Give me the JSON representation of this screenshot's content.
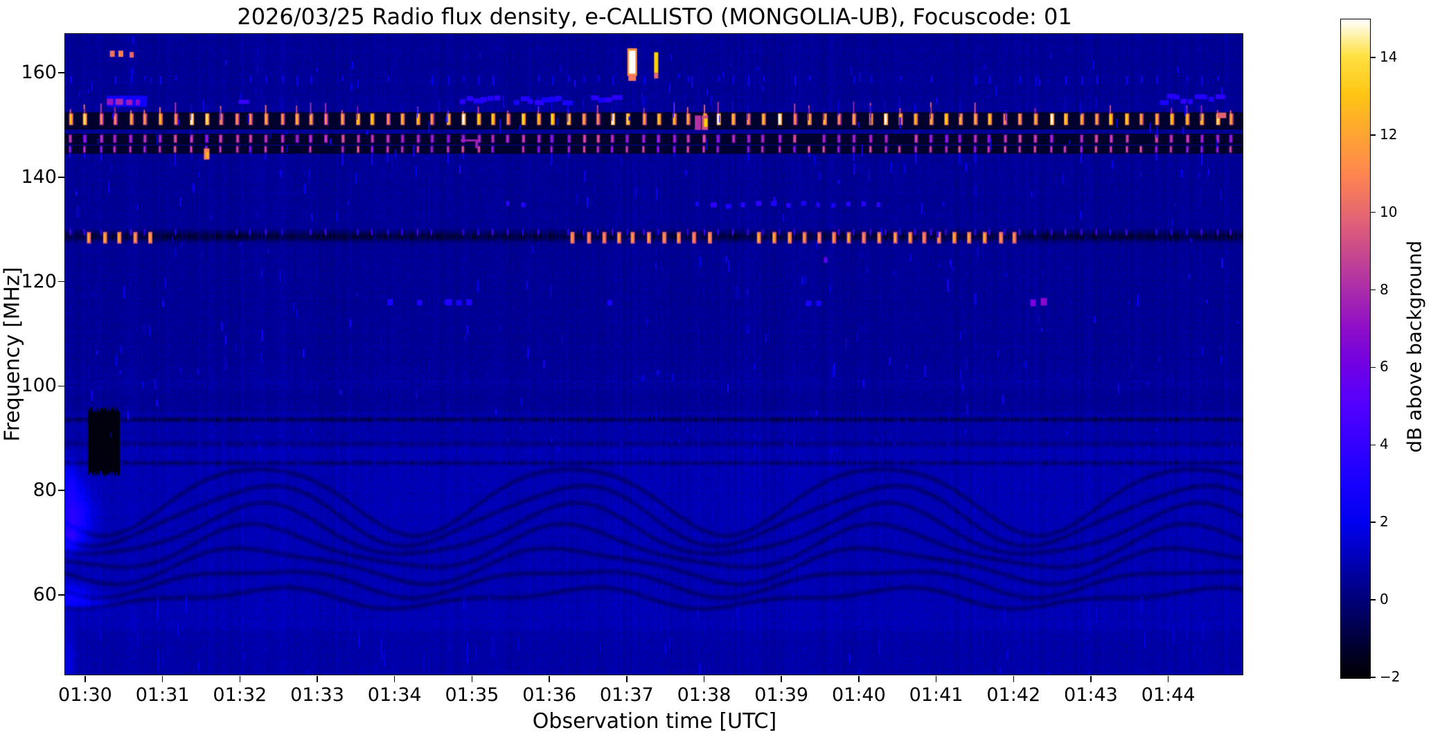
{
  "chart_data": {
    "type": "heatmap",
    "subtype": "radio-spectrogram",
    "title": "2026/03/25  Radio flux density, e-CALLISTO (MONGOLIA-UB), Focuscode: 01",
    "date": "2026/03/25",
    "station": "MONGOLIA-UB",
    "focuscode": "01",
    "xlabel": "Observation time [UTC]",
    "ylabel": "Frequency [MHz]",
    "x_axis": {
      "tick_labels": [
        "01:30",
        "01:31",
        "01:32",
        "01:33",
        "01:34",
        "01:35",
        "01:36",
        "01:37",
        "01:38",
        "01:39",
        "01:40",
        "01:41",
        "01:42",
        "01:43",
        "01:44"
      ],
      "tick_interval_min": 1,
      "plot_start_min_rel_0130": -0.25,
      "plot_end_min_rel_0130": 14.97
    },
    "y_axis": {
      "tick_values": [
        160,
        140,
        120,
        100,
        80,
        60
      ],
      "top_mhz": 167.3,
      "bottom_mhz": 44.6
    },
    "colorbar": {
      "label": "dB above background",
      "ticks": [
        14,
        12,
        10,
        8,
        6,
        4,
        2,
        0,
        -2
      ],
      "vmin": -2,
      "vmax": 15,
      "colormap": "gnuplot2"
    },
    "features": {
      "pulse_dash_period_s": 11.7,
      "pulse_rows": [
        {
          "freq_mhz": 150.5,
          "band_mhz": [
            149.0,
            152.2
          ],
          "intensity_db": [
            11,
            15
          ],
          "style": "yellow-white dashes on black band"
        },
        {
          "freq_mhz": 147.1,
          "band_mhz": [
            146.2,
            148.1
          ],
          "intensity_db": [
            6.5,
            9.5
          ],
          "style": "pink-magenta dashes on black band"
        },
        {
          "freq_mhz": 145.2,
          "band_mhz": [
            144.4,
            145.9
          ],
          "intensity_db": [
            7.5,
            10.5
          ],
          "style": "orange-pink dashes on black band"
        }
      ],
      "tick_row_mhz": 159.3,
      "rfi_band_128": {
        "freq_mhz": 128.6,
        "tick_db": 4.5,
        "burst_db": 12,
        "burst_ranges_min": [
          [
            0.05,
            0.9
          ],
          [
            6.3,
            8.2
          ],
          [
            8.7,
            12.2
          ]
        ]
      },
      "dark_lines_mhz": [
        93.5,
        88.9,
        85.2
      ],
      "ionosonde_waves": {
        "freq_range_mhz": [
          60,
          81
        ],
        "period_min": 4.03,
        "crest_at_min": 2.25,
        "n_bands": 7
      },
      "dropout_block": {
        "time_min": [
          0.05,
          0.45
        ],
        "freq_mhz": [
          83.5,
          94.8
        ]
      },
      "blue_dash_clusters_155": {
        "freq_mhz": 154.8,
        "ranges_min": [
          [
            4.85,
            5.35
          ],
          [
            5.55,
            6.25
          ],
          [
            6.55,
            6.85
          ],
          [
            13.9,
            14.62
          ]
        ]
      },
      "dash_row_135": {
        "freq_mhz": 134.8,
        "ranges_min": [
          [
            5.45,
            5.78
          ],
          [
            7.9,
            10.25
          ]
        ]
      },
      "transients": [
        [
          7.08,
          161.9,
          14,
          40,
          11.5
        ],
        [
          7.08,
          161.9,
          9,
          33,
          15
        ],
        [
          7.08,
          158.9,
          11,
          9,
          10.5
        ],
        [
          7.39,
          161.8,
          6,
          30,
          13.5
        ],
        [
          7.39,
          159.3,
          6,
          8,
          10
        ],
        [
          0.36,
          163.5,
          7,
          9,
          10.3
        ],
        [
          0.47,
          163.5,
          7,
          9,
          10.8
        ],
        [
          0.61,
          163.3,
          6,
          8,
          10
        ],
        [
          0.55,
          154.4,
          58,
          16,
          2.8
        ],
        [
          0.33,
          154.3,
          9,
          9,
          7.2
        ],
        [
          0.45,
          154.3,
          11,
          9,
          7.8
        ],
        [
          0.58,
          154.2,
          9,
          8,
          7.4
        ],
        [
          0.69,
          154.2,
          6,
          8,
          6.8
        ],
        [
          1.58,
          144.3,
          8,
          16,
          10.8
        ],
        [
          1.59,
          144.1,
          4,
          9,
          12.5
        ],
        [
          2.06,
          154.3,
          15,
          6,
          4.2
        ],
        [
          4.98,
          146.9,
          26,
          3,
          7.5
        ],
        [
          5.07,
          146.2,
          4,
          12,
          7.5
        ],
        [
          7.93,
          150.3,
          9,
          21,
          8.2
        ],
        [
          8.02,
          150.3,
          9,
          21,
          9.2
        ],
        [
          8.03,
          150.3,
          5,
          12,
          13.5
        ],
        [
          14.7,
          151.7,
          13,
          8,
          9.8
        ],
        [
          3.95,
          115.9,
          8,
          9,
          3.1
        ],
        [
          4.33,
          115.8,
          7,
          8,
          3.3
        ],
        [
          4.71,
          115.9,
          9,
          9,
          3.4
        ],
        [
          4.84,
          115.8,
          8,
          8,
          3.2
        ],
        [
          4.97,
          115.9,
          8,
          9,
          3.3
        ],
        [
          6.79,
          115.8,
          7,
          8,
          3.1
        ],
        [
          9.36,
          115.7,
          8,
          8,
          3.2
        ],
        [
          9.49,
          115.7,
          7,
          8,
          3.0
        ],
        [
          12.26,
          115.8,
          8,
          10,
          6.2
        ],
        [
          12.4,
          116.0,
          9,
          11,
          6.8
        ],
        [
          9.58,
          124.0,
          5,
          8,
          5.5
        ]
      ],
      "left_edge_smears": [
        {
          "t": -0.19,
          "f": 81.3,
          "sx": 10,
          "sy": 20,
          "a": 1.4
        },
        {
          "t": -0.16,
          "f": 75.1,
          "sx": 14,
          "sy": 24,
          "a": 2.0
        },
        {
          "t": -0.19,
          "f": 70.5,
          "sx": 10,
          "sy": 14,
          "a": 1.6
        },
        {
          "t": -0.02,
          "f": 74.4,
          "sx": 16,
          "sy": 34,
          "a": 0.7
        },
        {
          "t": -0.16,
          "f": 59.6,
          "sx": 16,
          "sy": 12,
          "a": 1.7
        },
        {
          "t": 0.15,
          "f": 58.5,
          "sx": 22,
          "sy": 8,
          "a": 0.7
        },
        {
          "t": -0.21,
          "f": 47.3,
          "sx": 8,
          "sy": 30,
          "a": 0.9
        }
      ]
    }
  }
}
